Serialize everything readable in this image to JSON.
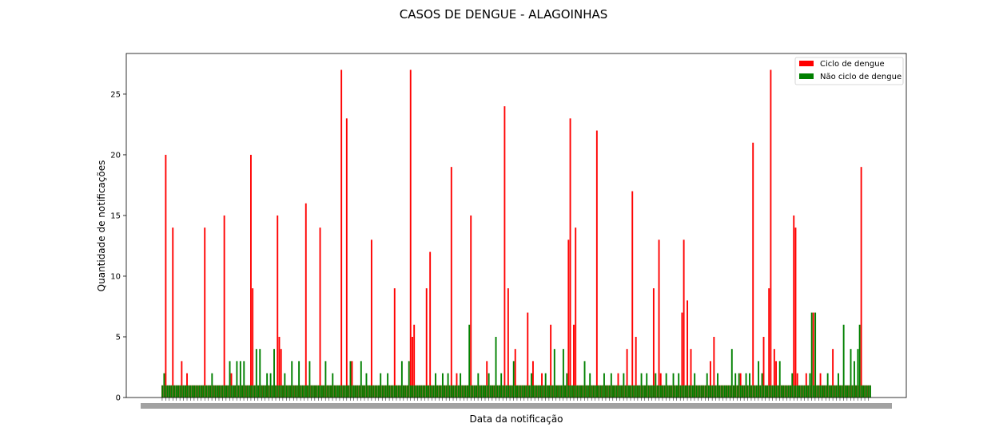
{
  "chart_data": {
    "type": "bar",
    "title": "CASOS DE DENGUE - ALAGOINHAS",
    "xlabel": "Data da notificação",
    "ylabel": "Quantidade de notificações",
    "ylim": [
      0,
      28.35
    ],
    "yticks": [
      0,
      5,
      10,
      15,
      20,
      25
    ],
    "legend_position": "top-right",
    "grid": false,
    "series": [
      {
        "name": "Ciclo de dengue",
        "color": "#ff0000",
        "peaks": [
          [
            0.5,
            20
          ],
          [
            1.5,
            14
          ],
          [
            2.8,
            3
          ],
          [
            3.6,
            2
          ],
          [
            6,
            14
          ],
          [
            8.8,
            15
          ],
          [
            10,
            2
          ],
          [
            12.8,
            20
          ],
          [
            13.1,
            9
          ],
          [
            16.5,
            15
          ],
          [
            16.8,
            5
          ],
          [
            17.1,
            4
          ],
          [
            20.5,
            16
          ],
          [
            20.6,
            4
          ],
          [
            22.6,
            14
          ],
          [
            25.6,
            27
          ],
          [
            26.4,
            23
          ],
          [
            27.3,
            3
          ],
          [
            29.9,
            13
          ],
          [
            33.2,
            9
          ],
          [
            33.3,
            7
          ],
          [
            35.6,
            27
          ],
          [
            35.9,
            5
          ],
          [
            36.1,
            6
          ],
          [
            37.9,
            9
          ],
          [
            38.5,
            12
          ],
          [
            41.5,
            19
          ],
          [
            42.3,
            2
          ],
          [
            44.2,
            15
          ],
          [
            46.6,
            3
          ],
          [
            49,
            24
          ],
          [
            49.5,
            9
          ],
          [
            50.6,
            4
          ],
          [
            52.4,
            7
          ],
          [
            53.2,
            3
          ],
          [
            54.4,
            2
          ],
          [
            55.6,
            6
          ],
          [
            58.2,
            13
          ],
          [
            58.6,
            23
          ],
          [
            59.1,
            6
          ],
          [
            59.3,
            14
          ],
          [
            62.4,
            22
          ],
          [
            62.2,
            6
          ],
          [
            65.4,
            2
          ],
          [
            66.6,
            4
          ],
          [
            67.3,
            17
          ],
          [
            67.9,
            5
          ],
          [
            70.4,
            9
          ],
          [
            71.3,
            13
          ],
          [
            71.6,
            2
          ],
          [
            74.5,
            7
          ],
          [
            74.7,
            13
          ],
          [
            75.3,
            8
          ],
          [
            75.8,
            4
          ],
          [
            78.5,
            3
          ],
          [
            79.1,
            5
          ],
          [
            82.9,
            2
          ],
          [
            84.6,
            20
          ],
          [
            84.8,
            21
          ],
          [
            86.2,
            5
          ],
          [
            86.9,
            9
          ],
          [
            87.2,
            27
          ],
          [
            87.8,
            4
          ],
          [
            88.1,
            3
          ],
          [
            90.6,
            15
          ],
          [
            90.9,
            14
          ],
          [
            91.1,
            2
          ],
          [
            92.4,
            2
          ],
          [
            93.3,
            7
          ],
          [
            94.3,
            2
          ],
          [
            96.1,
            4
          ],
          [
            100.3,
            19
          ],
          [
            101.2,
            1
          ]
        ]
      },
      {
        "name": "Não ciclo de dengue",
        "color": "#008000",
        "peaks": [
          [
            0.2,
            2
          ],
          [
            1.8,
            1
          ],
          [
            4.2,
            1
          ],
          [
            7.2,
            2
          ],
          [
            9.6,
            3
          ],
          [
            10.6,
            3
          ],
          [
            11.1,
            3
          ],
          [
            11.8,
            3
          ],
          [
            13.6,
            4
          ],
          [
            14.1,
            4
          ],
          [
            14.9,
            2
          ],
          [
            15.6,
            2
          ],
          [
            16.1,
            4
          ],
          [
            17.6,
            2
          ],
          [
            18.6,
            3
          ],
          [
            19.6,
            3
          ],
          [
            21.2,
            3
          ],
          [
            23.4,
            3
          ],
          [
            24.3,
            2
          ],
          [
            26.9,
            3
          ],
          [
            28.6,
            3
          ],
          [
            29.3,
            2
          ],
          [
            31.3,
            2
          ],
          [
            32.3,
            2
          ],
          [
            34.4,
            3
          ],
          [
            35.3,
            3
          ],
          [
            39.3,
            2
          ],
          [
            40.3,
            2
          ],
          [
            40.9,
            2
          ],
          [
            42.8,
            2
          ],
          [
            44.1,
            6
          ],
          [
            45.4,
            2
          ],
          [
            46.9,
            2
          ],
          [
            47.9,
            5
          ],
          [
            48.6,
            2
          ],
          [
            50.4,
            3
          ],
          [
            51.4,
            1
          ],
          [
            52.9,
            2
          ],
          [
            54.9,
            2
          ],
          [
            56.3,
            4
          ],
          [
            57.4,
            4
          ],
          [
            57.9,
            2
          ],
          [
            60.6,
            3
          ],
          [
            61.4,
            2
          ],
          [
            63.4,
            2
          ],
          [
            64.3,
            2
          ],
          [
            66.1,
            2
          ],
          [
            68.6,
            2
          ],
          [
            69.4,
            2
          ],
          [
            70.8,
            2
          ],
          [
            72.2,
            2
          ],
          [
            73.2,
            2
          ],
          [
            74.1,
            2
          ],
          [
            76.2,
            2
          ],
          [
            77.1,
            1
          ],
          [
            78.1,
            2
          ],
          [
            79.6,
            2
          ],
          [
            81.6,
            4
          ],
          [
            82.2,
            2
          ],
          [
            82.6,
            2
          ],
          [
            83.6,
            2
          ],
          [
            84.2,
            2
          ],
          [
            85.4,
            3
          ],
          [
            86.1,
            2
          ],
          [
            88.4,
            3
          ],
          [
            89.3,
            1
          ],
          [
            90.4,
            2
          ],
          [
            91.8,
            1
          ],
          [
            92.9,
            2
          ],
          [
            93.1,
            7
          ],
          [
            93.6,
            7
          ],
          [
            95.3,
            2
          ],
          [
            96.8,
            2
          ],
          [
            97.6,
            6
          ],
          [
            98.6,
            4
          ],
          [
            99.1,
            3
          ],
          [
            99.6,
            4
          ],
          [
            100.1,
            6
          ]
        ]
      }
    ]
  },
  "legend": {
    "items": [
      {
        "label": "Ciclo de dengue",
        "color": "#ff0000"
      },
      {
        "label": "Não ciclo de dengue",
        "color": "#008000"
      }
    ]
  }
}
